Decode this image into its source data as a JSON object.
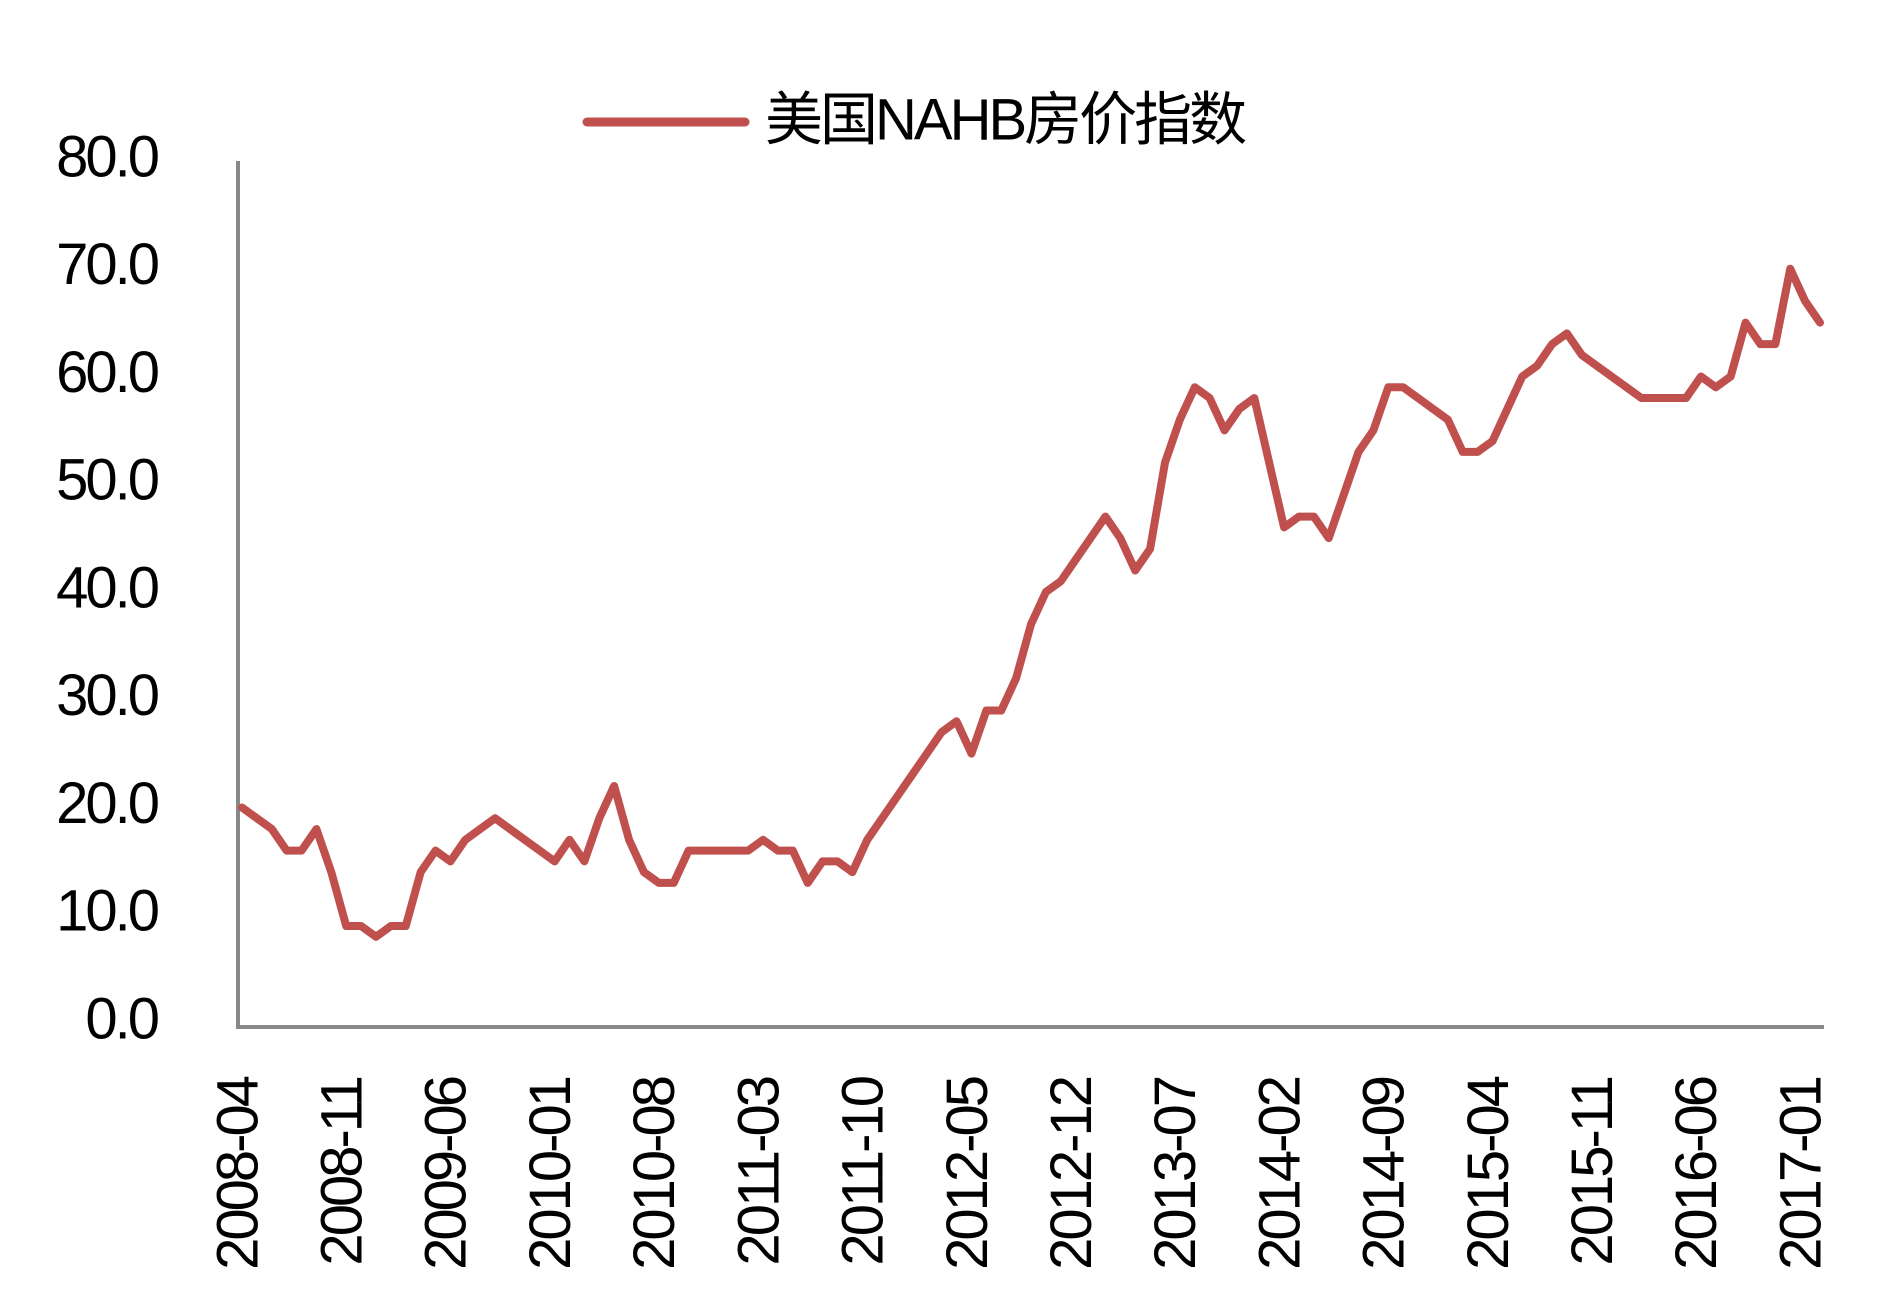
{
  "chart_data": {
    "type": "line",
    "categories": [
      "2008-04",
      null,
      null,
      null,
      null,
      null,
      null,
      "2008-11",
      null,
      null,
      null,
      null,
      null,
      null,
      "2009-06",
      null,
      null,
      null,
      null,
      null,
      null,
      "2010-01",
      null,
      null,
      null,
      null,
      null,
      null,
      "2010-08",
      null,
      null,
      null,
      null,
      null,
      null,
      "2011-03",
      null,
      null,
      null,
      null,
      null,
      null,
      "2011-10",
      null,
      null,
      null,
      null,
      null,
      null,
      "2012-05",
      null,
      null,
      null,
      null,
      null,
      null,
      "2012-12",
      null,
      null,
      null,
      null,
      null,
      null,
      "2013-07",
      null,
      null,
      null,
      null,
      null,
      null,
      "2014-02",
      null,
      null,
      null,
      null,
      null,
      null,
      "2014-09",
      null,
      null,
      null,
      null,
      null,
      null,
      "2015-04",
      null,
      null,
      null,
      null,
      null,
      null,
      "2015-11",
      null,
      null,
      null,
      null,
      null,
      null,
      "2016-06",
      null,
      null,
      null,
      null,
      null,
      null,
      "2017-01",
      null
    ],
    "series": [
      {
        "name": "美国NAHB房价指数",
        "color": "#c0504d",
        "values": [
          20,
          19,
          18,
          16,
          16,
          18,
          14,
          9,
          9,
          8,
          9,
          9,
          14,
          16,
          15,
          17,
          18,
          19,
          18,
          17,
          16,
          15,
          17,
          15,
          19,
          22,
          17,
          14,
          13,
          13,
          16,
          16,
          16,
          16,
          16,
          17,
          16,
          16,
          13,
          15,
          15,
          14,
          17,
          19,
          21,
          23,
          25,
          27,
          28,
          25,
          29,
          29,
          32,
          37,
          40,
          41,
          43,
          45,
          47,
          45,
          42,
          44,
          52,
          56,
          59,
          58,
          55,
          57,
          58,
          52,
          46,
          47,
          47,
          45,
          49,
          53,
          55,
          59,
          59,
          58,
          57,
          56,
          53,
          53,
          54,
          57,
          60,
          61,
          63,
          64,
          62,
          61,
          60,
          59,
          58,
          58,
          58,
          58,
          60,
          59,
          60,
          65,
          63,
          63,
          70,
          67,
          65
        ]
      }
    ],
    "ylim": [
      0,
      80
    ],
    "yticks": [
      {
        "value": 0,
        "label": "0.0"
      },
      {
        "value": 10,
        "label": "10.0"
      },
      {
        "value": 20,
        "label": "20.0"
      },
      {
        "value": 30,
        "label": "30.0"
      },
      {
        "value": 40,
        "label": "40.0"
      },
      {
        "value": 50,
        "label": "50.0"
      },
      {
        "value": 60,
        "label": "60.0"
      },
      {
        "value": 70,
        "label": "70.0"
      },
      {
        "value": 80,
        "label": "80.0"
      }
    ],
    "grid": false,
    "legend": "top"
  }
}
